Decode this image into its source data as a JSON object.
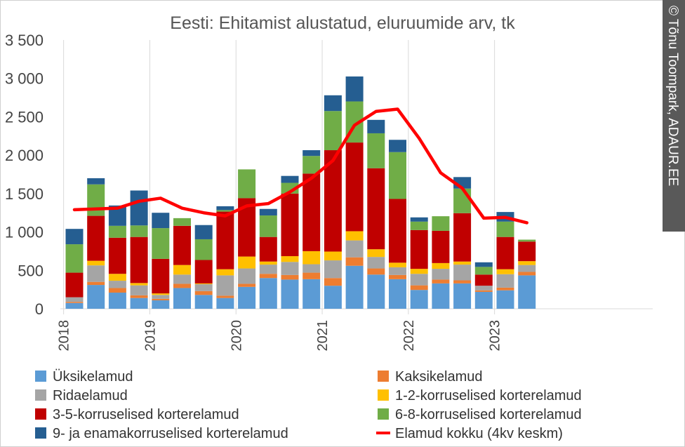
{
  "chart_data": {
    "type": "bar",
    "stacked": true,
    "title": "Eesti: Ehitamist alustatud, eluruumide arv, tk",
    "ylim": [
      0,
      3500
    ],
    "yticks": [
      0,
      500,
      1000,
      1500,
      2000,
      2500,
      3000,
      3500
    ],
    "ytick_labels": [
      "0",
      "500",
      "1 000",
      "1 500",
      "2 000",
      "2 500",
      "3 000",
      "3 500"
    ],
    "xtick_labels": [
      "2018",
      "2019",
      "2020",
      "2021",
      "2022",
      "2023"
    ],
    "grid": "vertical lines at year boundaries",
    "legend_position": "bottom",
    "categories": [
      "2018 Q1",
      "2018 Q2",
      "2018 Q3",
      "2018 Q4",
      "2019 Q1",
      "2019 Q2",
      "2019 Q3",
      "2019 Q4",
      "2020 Q1",
      "2020 Q2",
      "2020 Q3",
      "2020 Q4",
      "2021 Q1",
      "2021 Q2",
      "2021 Q3",
      "2021 Q4",
      "2022 Q1",
      "2022 Q2",
      "2022 Q3",
      "2022 Q4",
      "2023 Q1",
      "2023 Q2"
    ],
    "series": [
      {
        "name": "Üksikelamud",
        "color": "#5b9bd5",
        "values": [
          75,
          310,
          210,
          140,
          110,
          270,
          180,
          140,
          285,
          400,
          380,
          385,
          300,
          560,
          445,
          385,
          245,
          330,
          330,
          220,
          240,
          435
        ]
      },
      {
        "name": "Kaksikelamud",
        "color": "#ed7d31",
        "values": [
          15,
          40,
          60,
          35,
          20,
          55,
          50,
          30,
          40,
          55,
          60,
          85,
          100,
          110,
          80,
          55,
          60,
          50,
          40,
          20,
          35,
          45
        ]
      },
      {
        "name": "Ridaelamud",
        "color": "#a5a5a5",
        "values": [
          60,
          215,
          95,
          130,
          50,
          120,
          90,
          265,
          200,
          120,
          170,
          110,
          230,
          220,
          150,
          100,
          150,
          140,
          205,
          60,
          175,
          90
        ]
      },
      {
        "name": "1-2-korruselised korterelamud",
        "color": "#ffc000",
        "values": [
          0,
          60,
          90,
          30,
          20,
          125,
          10,
          80,
          155,
          40,
          75,
          170,
          115,
          120,
          100,
          60,
          65,
          75,
          40,
          0,
          65,
          50
        ]
      },
      {
        "name": "3-5-korruselised korterelamud",
        "color": "#c00000",
        "values": [
          320,
          585,
          470,
          600,
          450,
          510,
          305,
          750,
          760,
          320,
          815,
          1010,
          1320,
          1155,
          1055,
          830,
          505,
          420,
          630,
          145,
          420,
          255
        ]
      },
      {
        "name": "6-8-korruselised korterelamud",
        "color": "#70ad47",
        "values": [
          370,
          410,
          155,
          150,
          400,
          100,
          270,
          20,
          375,
          280,
          140,
          230,
          510,
          535,
          455,
          610,
          110,
          190,
          320,
          100,
          200,
          25
        ]
      },
      {
        "name": "9- ja enamakorruselised korterelamud",
        "color": "#255e91",
        "values": [
          200,
          80,
          265,
          455,
          200,
          0,
          185,
          50,
          0,
          85,
          90,
          75,
          205,
          325,
          175,
          160,
          55,
          0,
          150,
          60,
          125,
          0
        ]
      }
    ],
    "line_series": {
      "name": "Elamud kokku (4kv keskm)",
      "color": "#ff0000",
      "values": [
        1290,
        1300,
        1310,
        1400,
        1440,
        1310,
        1250,
        1210,
        1340,
        1370,
        1520,
        1700,
        1930,
        2390,
        2570,
        2600,
        2220,
        1770,
        1570,
        1180,
        1190,
        1120
      ]
    }
  },
  "credit": "© Tõnu Toompark, ADAUR.EE"
}
